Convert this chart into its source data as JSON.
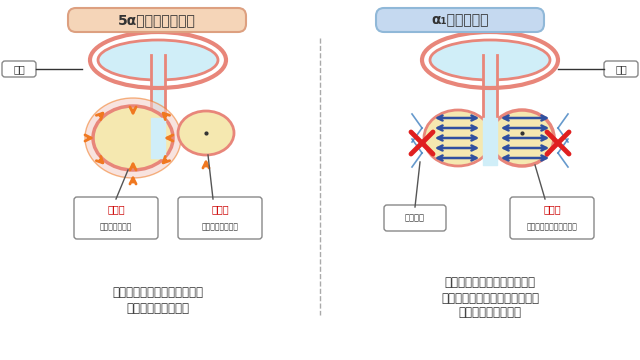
{
  "title_left": "5α還元酵素阵害薬",
  "title_right": "α₁ブロッカー",
  "title_left_bg": "#f5d5b8",
  "title_right_bg": "#c5d9f0",
  "label_bladder": "膜胱",
  "label_prostate_left": "前立腺",
  "label_prostate_left_sub": "（元の大きさ）",
  "label_prostate_right_left": "前立腺",
  "label_prostate_right_left_sub": "（小さくなった）",
  "label_sympathetic": "交感神経",
  "label_prostate_right": "前立腺",
  "label_prostate_right_sub": "（大きさは変わらない）",
  "caption_left1": "肥大した前立腺を小さくして",
  "caption_left2": "尿を通りやすくする",
  "caption_right1": "交感神経の働きをブロックし",
  "caption_right2": "前立腺の緊張を和らげることで",
  "caption_right3": "尿を通りやすくする",
  "bg_color": "#ffffff",
  "skin_color": "#e8867a",
  "prostate_fill": "#f5e8b0",
  "bladder_fill": "#d0eef8",
  "orange_arrow": "#f07820",
  "blue_arrow": "#3050a0",
  "red_x": "#e02020",
  "nerve_color": "#4080c0",
  "label_red": "#cc0000",
  "divider_color": "#aaaaaa"
}
